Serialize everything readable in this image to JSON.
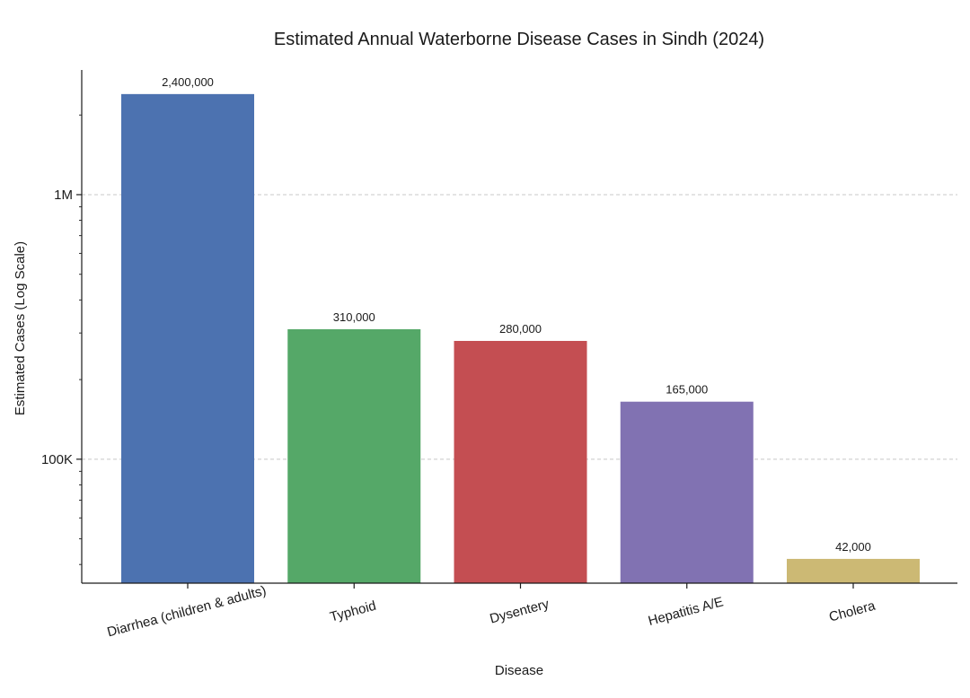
{
  "chart_data": {
    "type": "bar",
    "title": "Estimated Annual Waterborne Disease Cases in Sindh (2024)",
    "xlabel": "Disease",
    "ylabel": "Estimated Cases (Log Scale)",
    "yscale": "log",
    "ylim": [
      34000,
      2960000
    ],
    "yticks": [
      {
        "value": 100000,
        "label": "100K"
      },
      {
        "value": 1000000,
        "label": "1M"
      }
    ],
    "grid": "y-major-dashed",
    "categories": [
      "Diarrhea (children & adults)",
      "Typhoid",
      "Dysentery",
      "Hepatitis A/E",
      "Cholera"
    ],
    "values": [
      2400000,
      310000,
      280000,
      165000,
      42000
    ],
    "data_labels": [
      "2,400,000",
      "310,000",
      "280,000",
      "165,000",
      "42,000"
    ],
    "colors": [
      "#4c72b0",
      "#55a868",
      "#c44e52",
      "#8172b2",
      "#ccb974"
    ],
    "xtick_rotation": 15
  }
}
